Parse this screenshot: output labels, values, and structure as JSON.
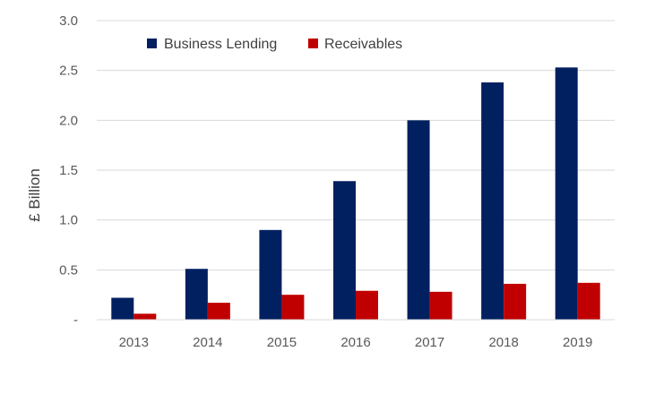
{
  "chart_data": {
    "type": "bar",
    "title": "",
    "xlabel": "",
    "ylabel": "£ Billion",
    "categories": [
      "2013",
      "2014",
      "2015",
      "2016",
      "2017",
      "2018",
      "2019"
    ],
    "series": [
      {
        "name": "Business Lending",
        "color": "#002060",
        "values": [
          0.22,
          0.51,
          0.9,
          1.39,
          2.0,
          2.38,
          2.53
        ]
      },
      {
        "name": "Receivables",
        "color": "#c00000",
        "values": [
          0.06,
          0.17,
          0.25,
          0.29,
          0.28,
          0.36,
          0.37
        ]
      }
    ],
    "ylim": [
      0,
      3.0
    ],
    "yticks": [
      {
        "value": 0,
        "label": "-"
      },
      {
        "value": 0.5,
        "label": "0.5"
      },
      {
        "value": 1.0,
        "label": "1.0"
      },
      {
        "value": 1.5,
        "label": "1.5"
      },
      {
        "value": 2.0,
        "label": "2.0"
      },
      {
        "value": 2.5,
        "label": "2.5"
      },
      {
        "value": 3.0,
        "label": "3.0"
      }
    ],
    "grid": true,
    "legend_position": "top-left"
  }
}
